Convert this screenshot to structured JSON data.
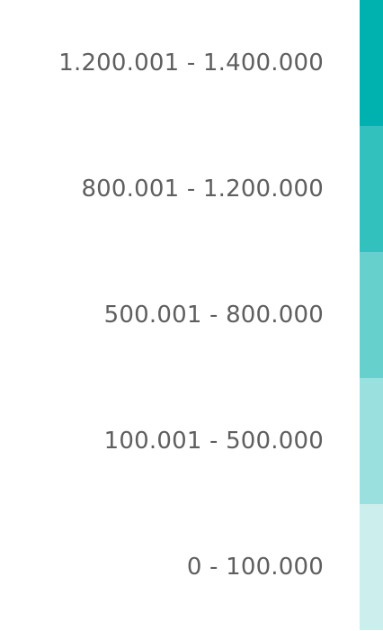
{
  "chart_data": {
    "type": "heatmap",
    "legend": {
      "items": [
        {
          "label": "1.200.001 - 1.400.000",
          "min": 1200001,
          "max": 1400000,
          "color": "#00b2af"
        },
        {
          "label": "800.001 - 1.200.000",
          "min": 800001,
          "max": 1200000,
          "color": "#33c1be"
        },
        {
          "label": "500.001 - 800.000",
          "min": 500001,
          "max": 800000,
          "color": "#66d0cd"
        },
        {
          "label": "100.001 - 500.000",
          "min": 100001,
          "max": 500000,
          "color": "#99e0de"
        },
        {
          "label": "0 - 100.000",
          "min": 0,
          "max": 100000,
          "color": "#cceeed"
        }
      ]
    }
  }
}
